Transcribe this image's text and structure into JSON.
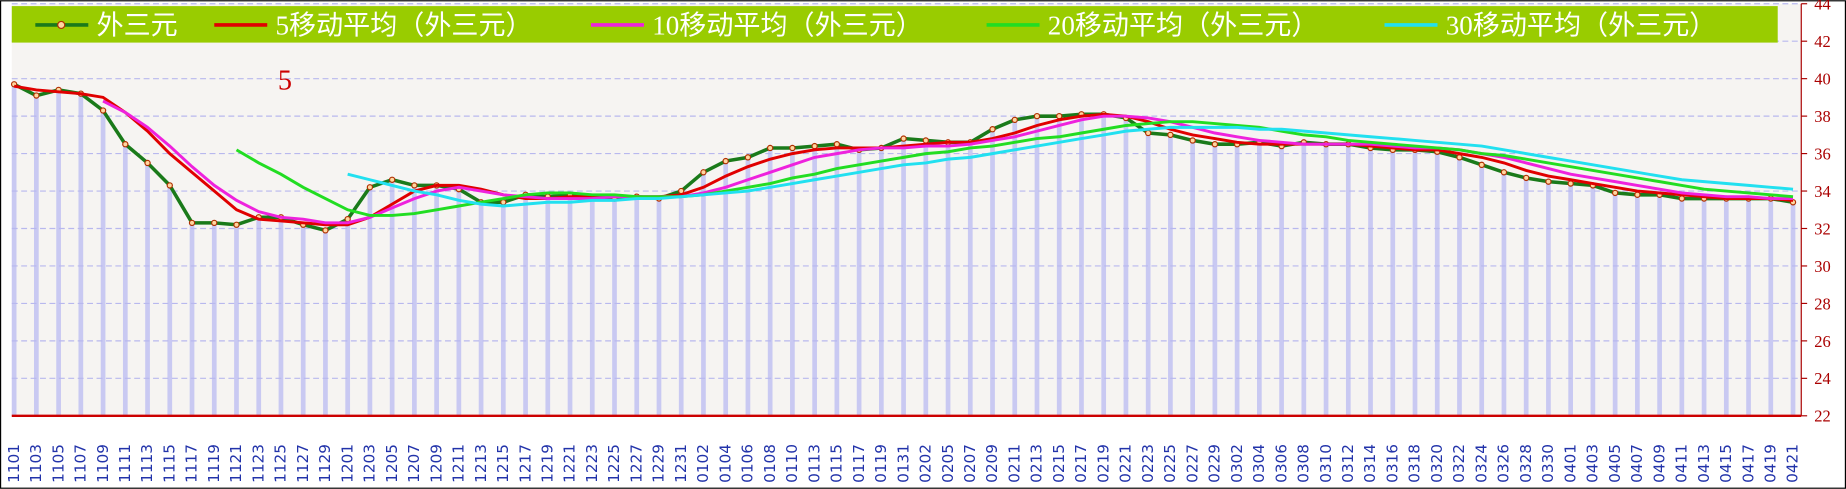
{
  "chart_data": {
    "type": "line",
    "annotation": "5",
    "legend": "top",
    "grid": true,
    "ylim": [
      22,
      44
    ],
    "yticks": [
      22,
      24,
      26,
      28,
      30,
      32,
      34,
      36,
      38,
      40,
      42,
      44
    ],
    "categories": [
      "1101",
      "1103",
      "1105",
      "1107",
      "1109",
      "1111",
      "1113",
      "1115",
      "1117",
      "1119",
      "1121",
      "1123",
      "1125",
      "1127",
      "1129",
      "1201",
      "1203",
      "1205",
      "1207",
      "1209",
      "1211",
      "1213",
      "1215",
      "1217",
      "1219",
      "1221",
      "1223",
      "1225",
      "1227",
      "1229",
      "1231",
      "0102",
      "0104",
      "0106",
      "0108",
      "0110",
      "0113",
      "0115",
      "0117",
      "0119",
      "0131",
      "0202",
      "0205",
      "0207",
      "0209",
      "0211",
      "0213",
      "0215",
      "0217",
      "0219",
      "0221",
      "0223",
      "0225",
      "0227",
      "0229",
      "0302",
      "0304",
      "0306",
      "0308",
      "0310",
      "0312",
      "0314",
      "0316",
      "0318",
      "0320",
      "0322",
      "0324",
      "0326",
      "0328",
      "0330",
      "0401",
      "0403",
      "0405",
      "0407",
      "0409",
      "0411",
      "0413",
      "0415",
      "0417",
      "0419",
      "0421"
    ],
    "series": [
      {
        "name": "外三元",
        "color": "#1a7a1a",
        "values": [
          39.7,
          39.1,
          39.4,
          39.2,
          38.3,
          36.5,
          35.5,
          34.3,
          32.3,
          32.3,
          32.2,
          32.6,
          32.6,
          32.2,
          31.9,
          32.5,
          34.2,
          34.6,
          34.3,
          34.3,
          34.1,
          33.4,
          33.4,
          33.8,
          33.7,
          33.8,
          33.7,
          33.6,
          33.7,
          33.6,
          34.0,
          35.0,
          35.6,
          35.8,
          36.3,
          36.3,
          36.4,
          36.5,
          36.2,
          36.3,
          36.8,
          36.7,
          36.6,
          36.6,
          37.3,
          37.8,
          38.0,
          38.0,
          38.1,
          38.1,
          37.9,
          37.1,
          37.0,
          36.7,
          36.5,
          36.5,
          36.6,
          36.4,
          36.6,
          36.5,
          36.5,
          36.3,
          36.2,
          36.2,
          36.1,
          35.8,
          35.4,
          35.0,
          34.7,
          34.5,
          34.4,
          34.3,
          33.9,
          33.8,
          33.8,
          33.6,
          33.6,
          33.6,
          33.6,
          33.6,
          33.4
        ]
      },
      {
        "name": "5移动平均（外三元）",
        "color": "#e00000",
        "values": [
          39.6,
          39.4,
          39.3,
          39.2,
          39.0,
          38.2,
          37.2,
          36.0,
          35.0,
          34.0,
          33.0,
          32.5,
          32.4,
          32.3,
          32.2,
          32.2,
          32.6,
          33.3,
          34.0,
          34.3,
          34.3,
          34.1,
          33.8,
          33.6,
          33.6,
          33.7,
          33.7,
          33.7,
          33.7,
          33.7,
          33.8,
          34.2,
          34.8,
          35.3,
          35.7,
          36.0,
          36.2,
          36.3,
          36.3,
          36.3,
          36.4,
          36.5,
          36.6,
          36.6,
          36.8,
          37.1,
          37.5,
          37.8,
          38.0,
          38.1,
          38.0,
          37.7,
          37.3,
          37.0,
          36.8,
          36.6,
          36.5,
          36.5,
          36.5,
          36.5,
          36.5,
          36.4,
          36.3,
          36.2,
          36.2,
          36.0,
          35.8,
          35.5,
          35.1,
          34.8,
          34.6,
          34.4,
          34.2,
          34.0,
          33.9,
          33.8,
          33.7,
          33.6,
          33.6,
          33.6,
          33.5
        ]
      },
      {
        "name": "10移动平均（外三元）",
        "color": "#ee22dd",
        "values": [
          null,
          null,
          null,
          null,
          38.8,
          38.2,
          37.4,
          36.4,
          35.3,
          34.3,
          33.5,
          32.9,
          32.6,
          32.5,
          32.3,
          32.3,
          32.6,
          33.1,
          33.6,
          34.0,
          34.2,
          34.0,
          33.8,
          33.7,
          33.6,
          33.6,
          33.6,
          33.7,
          33.7,
          33.7,
          33.7,
          33.9,
          34.2,
          34.6,
          35.0,
          35.4,
          35.8,
          36.0,
          36.2,
          36.3,
          36.3,
          36.4,
          36.4,
          36.5,
          36.7,
          36.9,
          37.2,
          37.5,
          37.8,
          38.0,
          38.0,
          37.9,
          37.7,
          37.4,
          37.1,
          36.9,
          36.7,
          36.6,
          36.5,
          36.5,
          36.5,
          36.5,
          36.4,
          36.3,
          36.3,
          36.2,
          36.0,
          35.8,
          35.5,
          35.2,
          34.9,
          34.7,
          34.5,
          34.3,
          34.1,
          33.9,
          33.8,
          33.7,
          33.7,
          33.6,
          33.6
        ]
      },
      {
        "name": "20移动平均（外三元）",
        "color": "#22dd22",
        "values": [
          null,
          null,
          null,
          null,
          null,
          null,
          null,
          null,
          null,
          null,
          36.2,
          35.5,
          34.9,
          34.2,
          33.6,
          33.0,
          32.7,
          32.7,
          32.8,
          33.0,
          33.2,
          33.4,
          33.6,
          33.8,
          33.9,
          33.9,
          33.8,
          33.8,
          33.7,
          33.7,
          33.7,
          33.8,
          34.0,
          34.2,
          34.4,
          34.7,
          34.9,
          35.2,
          35.4,
          35.6,
          35.8,
          36.0,
          36.1,
          36.3,
          36.4,
          36.6,
          36.8,
          36.9,
          37.1,
          37.3,
          37.5,
          37.6,
          37.7,
          37.7,
          37.6,
          37.5,
          37.4,
          37.2,
          37.0,
          36.9,
          36.7,
          36.6,
          36.5,
          36.4,
          36.3,
          36.2,
          36.0,
          35.9,
          35.7,
          35.5,
          35.3,
          35.1,
          34.9,
          34.7,
          34.5,
          34.3,
          34.1,
          34.0,
          33.9,
          33.8,
          33.7
        ]
      },
      {
        "name": "30移动平均（外三元）",
        "color": "#22e0f0",
        "values": [
          null,
          null,
          null,
          null,
          null,
          null,
          null,
          null,
          null,
          null,
          null,
          null,
          null,
          null,
          null,
          34.9,
          34.6,
          34.3,
          34.0,
          33.8,
          33.5,
          33.3,
          33.2,
          33.3,
          33.4,
          33.4,
          33.5,
          33.5,
          33.6,
          33.6,
          33.7,
          33.8,
          33.9,
          34.0,
          34.2,
          34.4,
          34.6,
          34.8,
          35.0,
          35.2,
          35.4,
          35.5,
          35.7,
          35.8,
          36.0,
          36.2,
          36.4,
          36.6,
          36.8,
          37.0,
          37.2,
          37.3,
          37.4,
          37.4,
          37.4,
          37.4,
          37.3,
          37.3,
          37.2,
          37.1,
          37.0,
          36.9,
          36.8,
          36.7,
          36.6,
          36.5,
          36.4,
          36.2,
          36.0,
          35.8,
          35.6,
          35.4,
          35.2,
          35.0,
          34.8,
          34.6,
          34.5,
          34.4,
          34.3,
          34.2,
          34.1
        ]
      }
    ]
  }
}
